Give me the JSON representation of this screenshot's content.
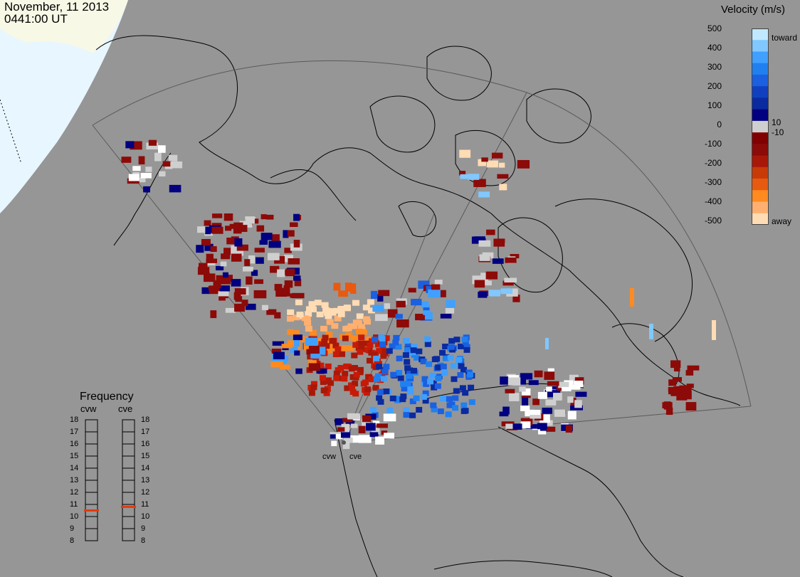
{
  "header": {
    "date": "November, 11 2013",
    "time": "0441:00 UT"
  },
  "colorbar": {
    "title": "Velocity (m/s)",
    "ticks": [
      "500",
      "400",
      "300",
      "200",
      "100",
      "0",
      "-100",
      "-200",
      "-300",
      "-400",
      "-500"
    ],
    "inner_labels": [
      "10",
      "-10"
    ],
    "toward_label": "toward",
    "away_label": "away",
    "colors": [
      "#ffdcb4",
      "#ffb070",
      "#ff8a20",
      "#e85a10",
      "#c83a08",
      "#a81808",
      "#8c0a08",
      "#800000",
      "#cfcfcf",
      "#000080",
      "#0a2aa0",
      "#1040c0",
      "#1a60e0",
      "#2080f0",
      "#40a0ff",
      "#80c8ff",
      "#c0e8ff"
    ]
  },
  "frequency": {
    "title": "Frequency",
    "radars": [
      "cvw",
      "cve"
    ],
    "scale": [
      "18",
      "17",
      "16",
      "15",
      "14",
      "13",
      "12",
      "11",
      "10",
      "9",
      "8"
    ],
    "cvw_mhz": 10.5,
    "cve_mhz": 10.8,
    "marker_color": "#e03c10"
  },
  "radar_sites": {
    "labels": [
      "cvw",
      "cve"
    ]
  },
  "map": {
    "background": "#969696",
    "land_outline": "#000000",
    "fov_outline": "#5a5a5a",
    "daylight_color": "#f8f8e8",
    "ocean_daylight": "#e8f4fc"
  }
}
